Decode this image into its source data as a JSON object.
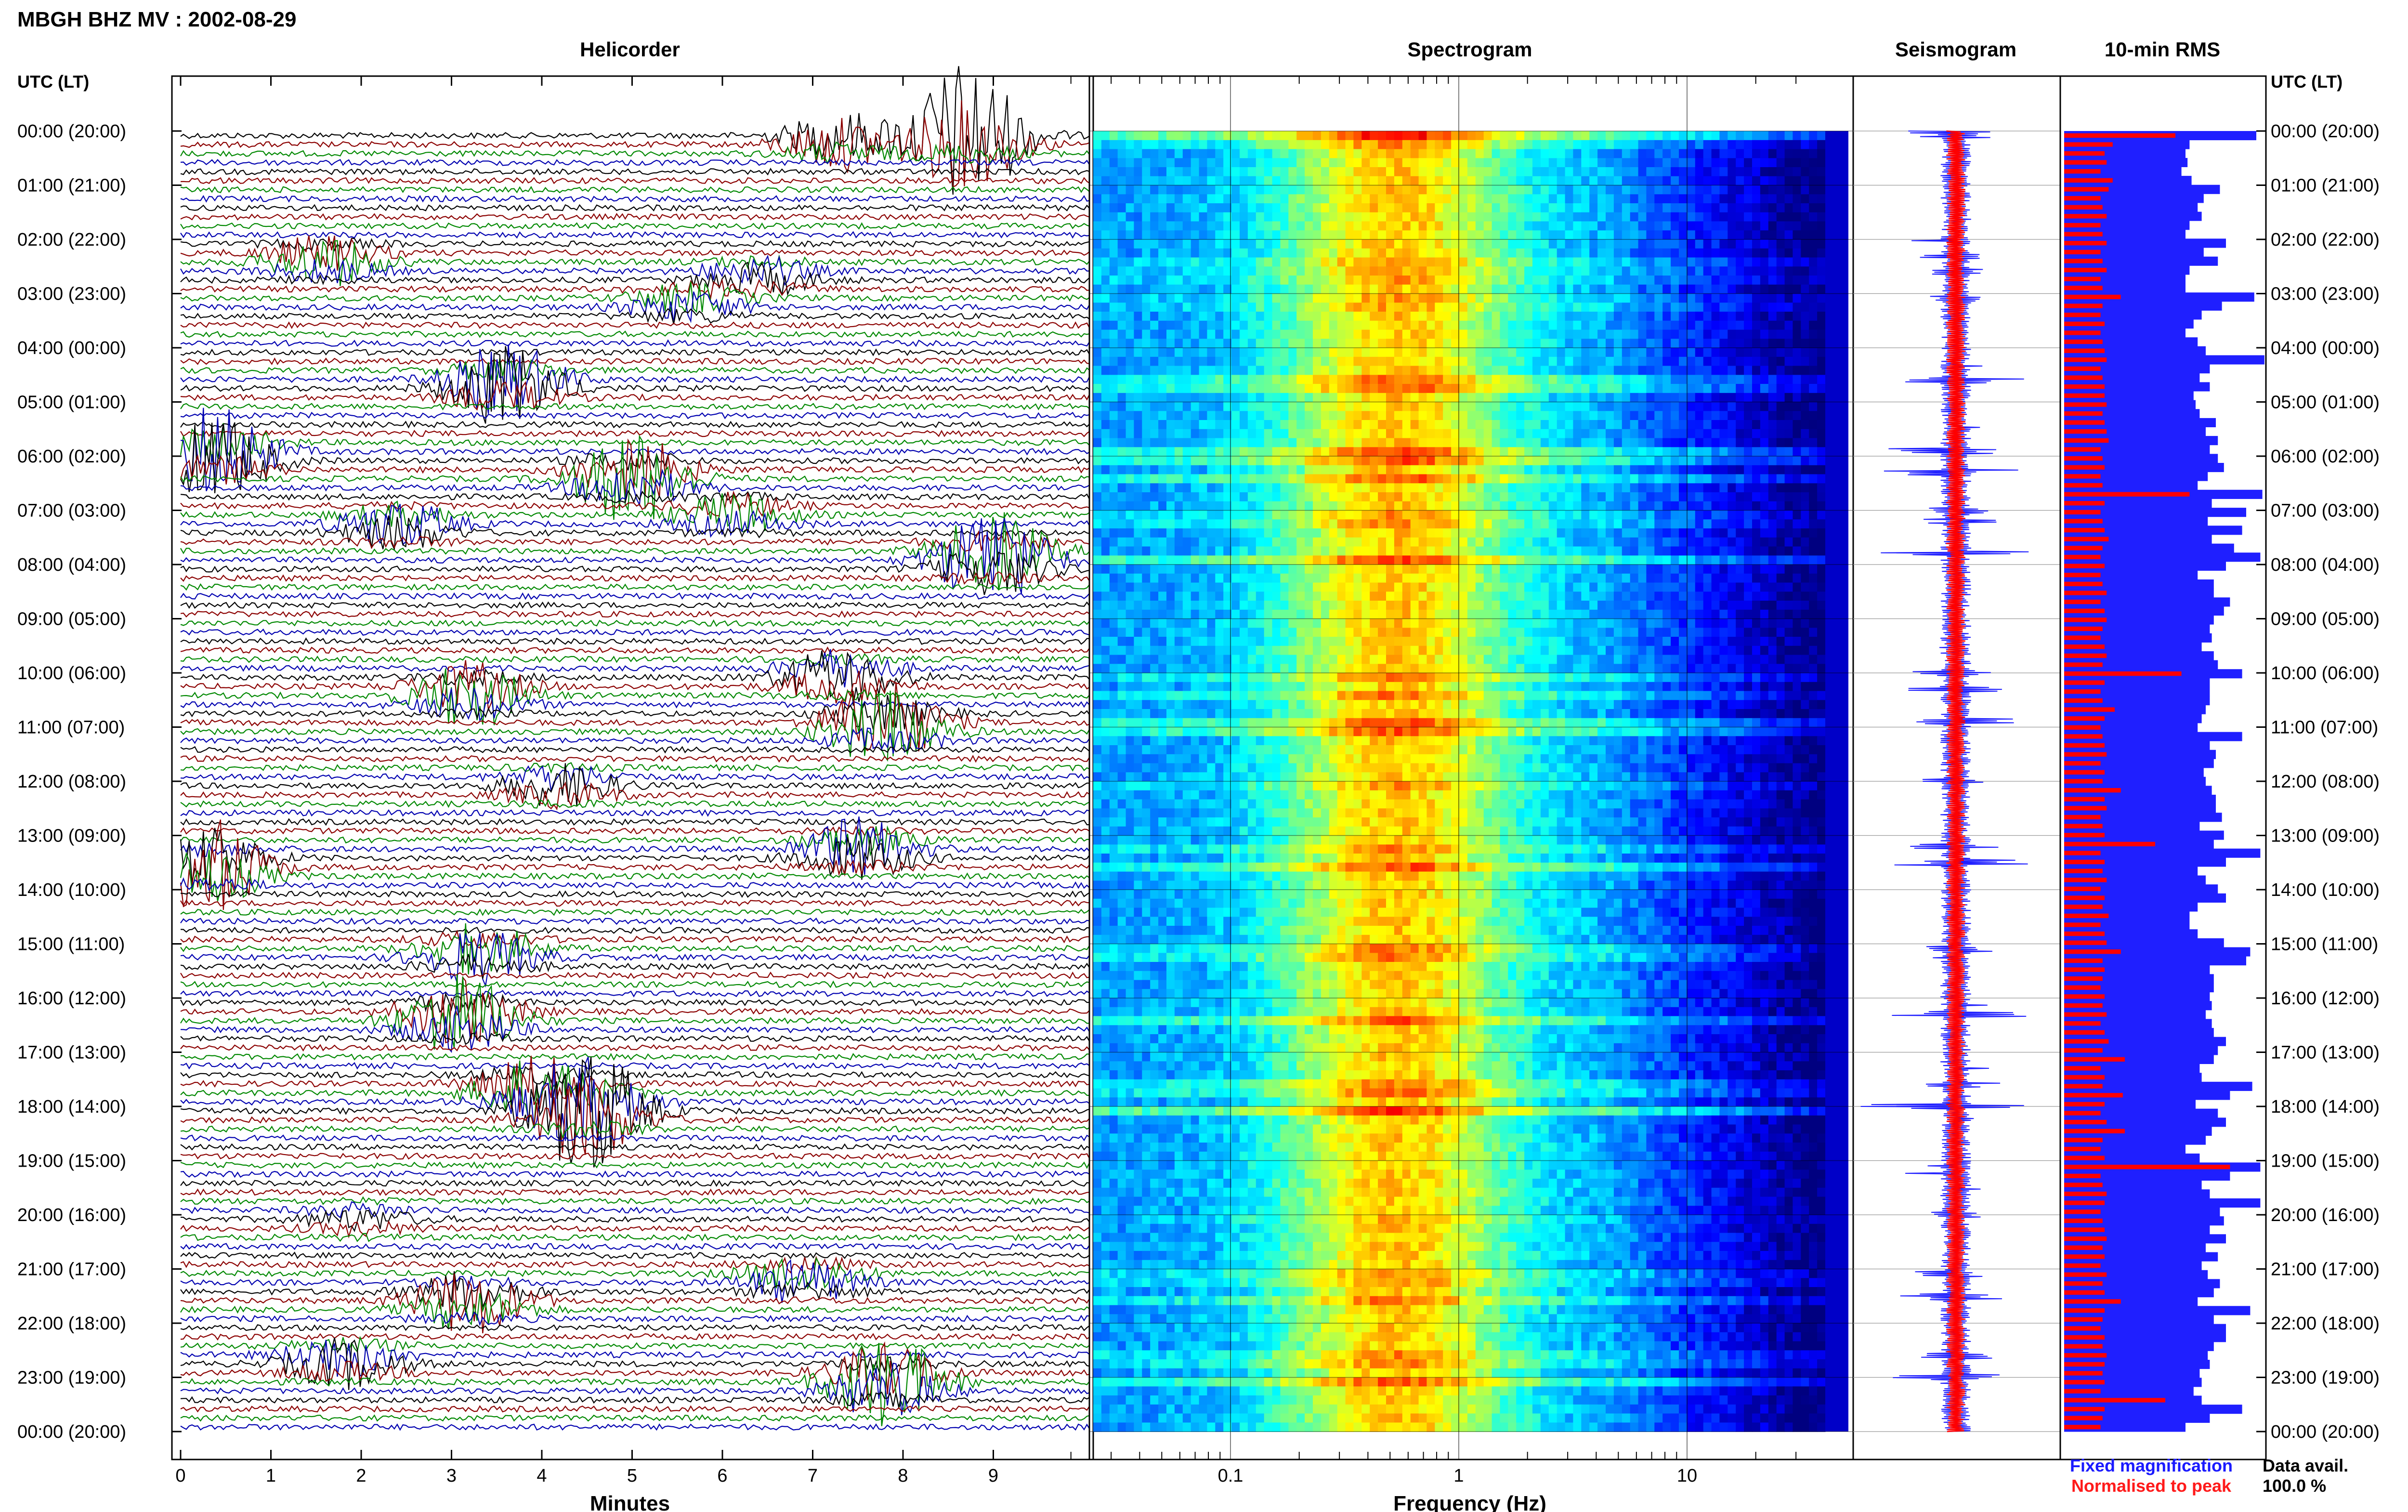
{
  "header": {
    "title": "MBGH BHZ MV : 2002-08-29",
    "utc_label": "UTC (LT)"
  },
  "chart_data": {
    "type": "seismic-summary",
    "panels": [
      {
        "id": "helicorder",
        "title": "Helicorder",
        "xlabel": "Minutes",
        "x_ticks": [
          "0",
          "1",
          "2",
          "3",
          "4",
          "5",
          "6",
          "7",
          "8",
          "9"
        ]
      },
      {
        "id": "spectrogram",
        "title": "Spectrogram",
        "xlabel": "Frequency (Hz)",
        "x_scale": "log",
        "x_ticks": [
          "0.1",
          "1",
          "10"
        ],
        "colormap": "jet"
      },
      {
        "id": "seismogram",
        "title": "Seismogram"
      },
      {
        "id": "rms",
        "title": "10-min RMS"
      }
    ],
    "time_labels": [
      "00:00 (20:00)",
      "01:00 (21:00)",
      "02:00 (22:00)",
      "03:00 (23:00)",
      "04:00 (00:00)",
      "05:00 (01:00)",
      "06:00 (02:00)",
      "07:00 (03:00)",
      "08:00 (04:00)",
      "09:00 (05:00)",
      "10:00 (06:00)",
      "11:00 (07:00)",
      "12:00 (08:00)",
      "13:00 (09:00)",
      "14:00 (10:00)",
      "15:00 (11:00)",
      "16:00 (12:00)",
      "17:00 (13:00)",
      "18:00 (14:00)",
      "19:00 (15:00)",
      "20:00 (16:00)",
      "21:00 (17:00)",
      "22:00 (18:00)",
      "23:00 (19:00)",
      "00:00 (20:00)"
    ],
    "trace_colors": [
      "#000000",
      "#8b0000",
      "#008800",
      "#0000b0"
    ],
    "helicorder_events": [
      {
        "hour": 0.0,
        "minute": 8.7,
        "amp": 2.2
      },
      {
        "hour": 0.1,
        "minute": 7.3,
        "amp": 0.8
      },
      {
        "hour": 2.3,
        "minute": 1.6,
        "amp": 0.7
      },
      {
        "hour": 2.6,
        "minute": 6.4,
        "amp": 0.5
      },
      {
        "hour": 3.1,
        "minute": 5.6,
        "amp": 0.5
      },
      {
        "hour": 4.6,
        "minute": 3.6,
        "amp": 1.3
      },
      {
        "hour": 5.9,
        "minute": 0.4,
        "amp": 1.5
      },
      {
        "hour": 6.3,
        "minute": 5.0,
        "amp": 1.4
      },
      {
        "hour": 7.2,
        "minute": 2.4,
        "amp": 0.7
      },
      {
        "hour": 7.0,
        "minute": 6.1,
        "amp": 0.6
      },
      {
        "hour": 7.8,
        "minute": 9.0,
        "amp": 1.6
      },
      {
        "hour": 10.0,
        "minute": 7.3,
        "amp": 0.9
      },
      {
        "hour": 10.3,
        "minute": 3.2,
        "amp": 1.0
      },
      {
        "hour": 10.9,
        "minute": 7.8,
        "amp": 1.4
      },
      {
        "hour": 12.0,
        "minute": 4.2,
        "amp": 0.6
      },
      {
        "hour": 13.5,
        "minute": 0.3,
        "amp": 1.5
      },
      {
        "hour": 13.2,
        "minute": 7.5,
        "amp": 0.9
      },
      {
        "hour": 15.1,
        "minute": 3.3,
        "amp": 0.9
      },
      {
        "hour": 16.3,
        "minute": 3.1,
        "amp": 1.4
      },
      {
        "hour": 17.6,
        "minute": 3.9,
        "amp": 1.0
      },
      {
        "hour": 18.0,
        "minute": 4.5,
        "amp": 2.0
      },
      {
        "hour": 20.0,
        "minute": 2.0,
        "amp": 0.3
      },
      {
        "hour": 21.5,
        "minute": 3.2,
        "amp": 1.0
      },
      {
        "hour": 21.1,
        "minute": 6.9,
        "amp": 0.7
      },
      {
        "hour": 22.6,
        "minute": 1.8,
        "amp": 0.8
      },
      {
        "hour": 23.0,
        "minute": 7.8,
        "amp": 1.4
      }
    ],
    "rms": {
      "fixed_values": [
        0.95,
        0.62,
        0.6,
        0.61,
        0.58,
        0.63,
        0.77,
        0.69,
        0.66,
        0.68,
        0.62,
        0.6,
        0.8,
        0.69,
        0.76,
        0.62,
        0.6,
        0.6,
        0.94,
        0.78,
        0.68,
        0.64,
        0.6,
        0.66,
        0.7,
        0.99,
        0.72,
        0.67,
        0.72,
        0.64,
        0.65,
        0.67,
        0.75,
        0.7,
        0.76,
        0.72,
        0.76,
        0.79,
        0.71,
        0.66,
        0.98,
        0.73,
        0.9,
        0.71,
        0.88,
        0.73,
        0.84,
        0.97,
        0.8,
        0.66,
        0.74,
        0.74,
        0.82,
        0.79,
        0.74,
        0.72,
        0.73,
        0.68,
        0.74,
        0.76,
        0.88,
        0.72,
        0.72,
        0.72,
        0.7,
        0.68,
        0.66,
        0.88,
        0.72,
        0.75,
        0.74,
        0.69,
        0.7,
        0.73,
        0.75,
        0.75,
        0.78,
        0.67,
        0.79,
        0.74,
        0.97,
        0.8,
        0.66,
        0.7,
        0.76,
        0.8,
        0.66,
        0.62,
        0.62,
        0.66,
        0.79,
        0.92,
        0.9,
        0.72,
        0.74,
        0.74,
        0.72,
        0.73,
        0.7,
        0.73,
        0.74,
        0.8,
        0.76,
        0.74,
        0.67,
        0.68,
        0.93,
        0.82,
        0.65,
        0.76,
        0.8,
        0.73,
        0.7,
        0.6,
        0.67,
        0.97,
        0.82,
        0.68,
        0.72,
        0.97,
        0.77,
        0.79,
        0.72,
        0.8,
        0.7,
        0.76,
        0.68,
        0.71,
        0.77,
        0.74,
        0.66,
        0.92,
        0.74,
        0.8,
        0.8,
        0.74,
        0.71,
        0.72,
        0.67,
        0.68,
        0.64,
        0.68,
        0.88,
        0.72,
        0.6
      ],
      "peak_values": [
        0.55,
        0.24,
        0.2,
        0.21,
        0.18,
        0.24,
        0.22,
        0.18,
        0.19,
        0.21,
        0.18,
        0.19,
        0.21,
        0.18,
        0.19,
        0.21,
        0.18,
        0.19,
        0.28,
        0.19,
        0.18,
        0.2,
        0.18,
        0.19,
        0.2,
        0.21,
        0.18,
        0.19,
        0.2,
        0.2,
        0.21,
        0.19,
        0.2,
        0.21,
        0.22,
        0.18,
        0.19,
        0.2,
        0.18,
        0.19,
        0.62,
        0.2,
        0.18,
        0.19,
        0.2,
        0.22,
        0.19,
        0.18,
        0.2,
        0.18,
        0.19,
        0.21,
        0.18,
        0.2,
        0.21,
        0.19,
        0.18,
        0.2,
        0.21,
        0.19,
        0.58,
        0.2,
        0.18,
        0.19,
        0.25,
        0.2,
        0.18,
        0.19,
        0.2,
        0.21,
        0.18,
        0.2,
        0.19,
        0.28,
        0.2,
        0.21,
        0.18,
        0.19,
        0.2,
        0.45,
        0.18,
        0.2,
        0.19,
        0.21,
        0.18,
        0.2,
        0.19,
        0.22,
        0.18,
        0.2,
        0.21,
        0.28,
        0.19,
        0.2,
        0.19,
        0.18,
        0.2,
        0.19,
        0.21,
        0.18,
        0.2,
        0.22,
        0.19,
        0.3,
        0.18,
        0.2,
        0.19,
        0.29,
        0.2,
        0.18,
        0.21,
        0.3,
        0.19,
        0.18,
        0.2,
        0.82,
        0.18,
        0.19,
        0.21,
        0.2,
        0.18,
        0.19,
        0.2,
        0.21,
        0.19,
        0.2,
        0.18,
        0.21,
        0.19,
        0.2,
        0.28,
        0.2,
        0.19,
        0.18,
        0.2,
        0.19,
        0.21,
        0.2,
        0.19,
        0.2,
        0.18,
        0.5,
        0.2,
        0.19,
        0.18
      ]
    },
    "legend": {
      "fixed": "Fixed magnification",
      "normalised": "Normalised to peak"
    },
    "data_availability": {
      "label": "Data avail.",
      "value": "100.0 %"
    }
  }
}
